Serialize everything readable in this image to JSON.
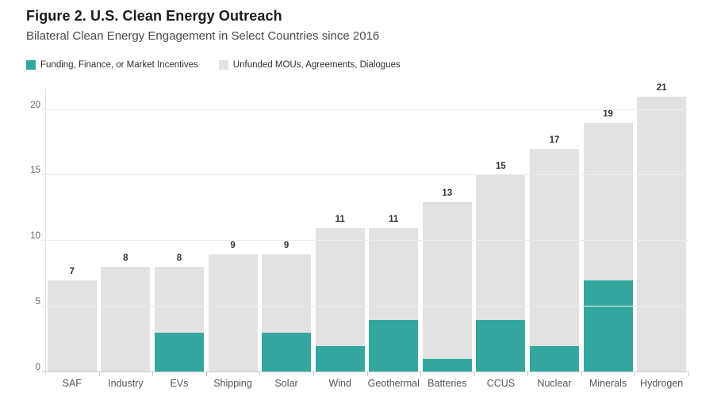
{
  "figure": {
    "title": "Figure 2. U.S. Clean Energy Outreach",
    "subtitle": "Bilateral Clean Energy Engagement in Select Countries since 2016"
  },
  "colors": {
    "funded": "#33a79d",
    "unfunded": "#e2e2e2"
  },
  "chart_data": {
    "type": "bar",
    "stacked": true,
    "title": "Figure 2. U.S. Clean Energy Outreach",
    "subtitle": "Bilateral Clean Energy Engagement in Select Countries since 2016",
    "categories": [
      "SAF",
      "Industry",
      "EVs",
      "Shipping",
      "Solar",
      "Wind",
      "Geothermal",
      "Batteries",
      "CCUS",
      "Nuclear",
      "Minerals",
      "Hydrogen"
    ],
    "series": [
      {
        "name": "Funding, Finance, or Market Incentives",
        "color": "#33a79d",
        "values": [
          0,
          0,
          3,
          0,
          3,
          2,
          4,
          1,
          4,
          2,
          7,
          0
        ]
      },
      {
        "name": "Unfunded MOUs, Agreements, Dialogues",
        "color": "#e2e2e2",
        "values": [
          7,
          8,
          5,
          9,
          6,
          9,
          7,
          12,
          11,
          15,
          12,
          21
        ]
      }
    ],
    "totals": [
      7,
      8,
      8,
      9,
      9,
      11,
      11,
      13,
      15,
      17,
      19,
      21
    ],
    "total_labels_shown": true,
    "xlabel": "",
    "ylabel": "",
    "yticks": [
      0,
      5,
      10,
      15,
      20
    ],
    "ylim": [
      0,
      21.6
    ],
    "grid": true,
    "legend_position": "top-left"
  }
}
